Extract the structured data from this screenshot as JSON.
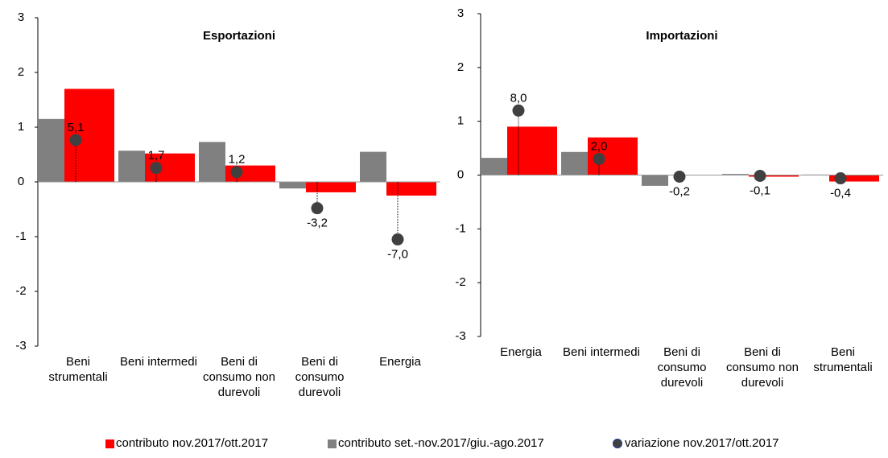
{
  "chart_data": [
    {
      "type": "bar",
      "title": "Esportazioni",
      "categories": [
        "Beni strumentali",
        "Beni intermedi",
        "Beni di consumo non durevoli",
        "Beni di consumo durevoli",
        "Energia"
      ],
      "ylim": [
        -3,
        3
      ],
      "yticks": [
        -3,
        -2,
        -1,
        0,
        1,
        2,
        3
      ],
      "y2lim": [
        -20,
        20
      ],
      "series": [
        {
          "name": "contributo nov.2017/ott.2017",
          "type": "bar",
          "color": "#ff0000",
          "values": [
            1.7,
            0.52,
            0.3,
            -0.19,
            -0.25
          ]
        },
        {
          "name": "contributo set.-nov.2017/giu.-ago.2017",
          "type": "bar",
          "color": "#808080",
          "values": [
            1.15,
            0.57,
            0.73,
            -0.12,
            0.55
          ]
        },
        {
          "name": "variazione nov.2017/ott.2017",
          "type": "scatter",
          "axis": "y2",
          "color": "#404040",
          "values": [
            5.1,
            1.7,
            1.2,
            -3.2,
            -7.0
          ],
          "value_labels": [
            "5,1",
            "1,7",
            "1,2",
            "-3,2",
            "-7,0"
          ]
        }
      ]
    },
    {
      "type": "bar",
      "title": "Importazioni",
      "categories": [
        "Energia",
        "Beni intermedi",
        "Beni di consumo durevoli",
        "Beni di consumo non durevoli",
        "Beni strumentali"
      ],
      "ylim": [
        -3,
        3
      ],
      "yticks": [
        -3,
        -2,
        -1,
        0,
        1,
        2,
        3
      ],
      "y2lim": [
        -20,
        20
      ],
      "series": [
        {
          "type": "bar",
          "color": "#ff0000",
          "values": [
            0.9,
            0.7,
            0.0,
            -0.03,
            -0.12
          ]
        },
        {
          "type": "bar",
          "color": "#808080",
          "values": [
            0.32,
            0.43,
            -0.2,
            0.02,
            0.01
          ]
        },
        {
          "type": "scatter",
          "axis": "y2",
          "color": "#404040",
          "values": [
            8.0,
            2.0,
            -0.2,
            -0.1,
            -0.4
          ],
          "value_labels": [
            "8,0",
            "2,0",
            "-0,2",
            "-0,1",
            "-0,4"
          ]
        }
      ]
    }
  ]
}
